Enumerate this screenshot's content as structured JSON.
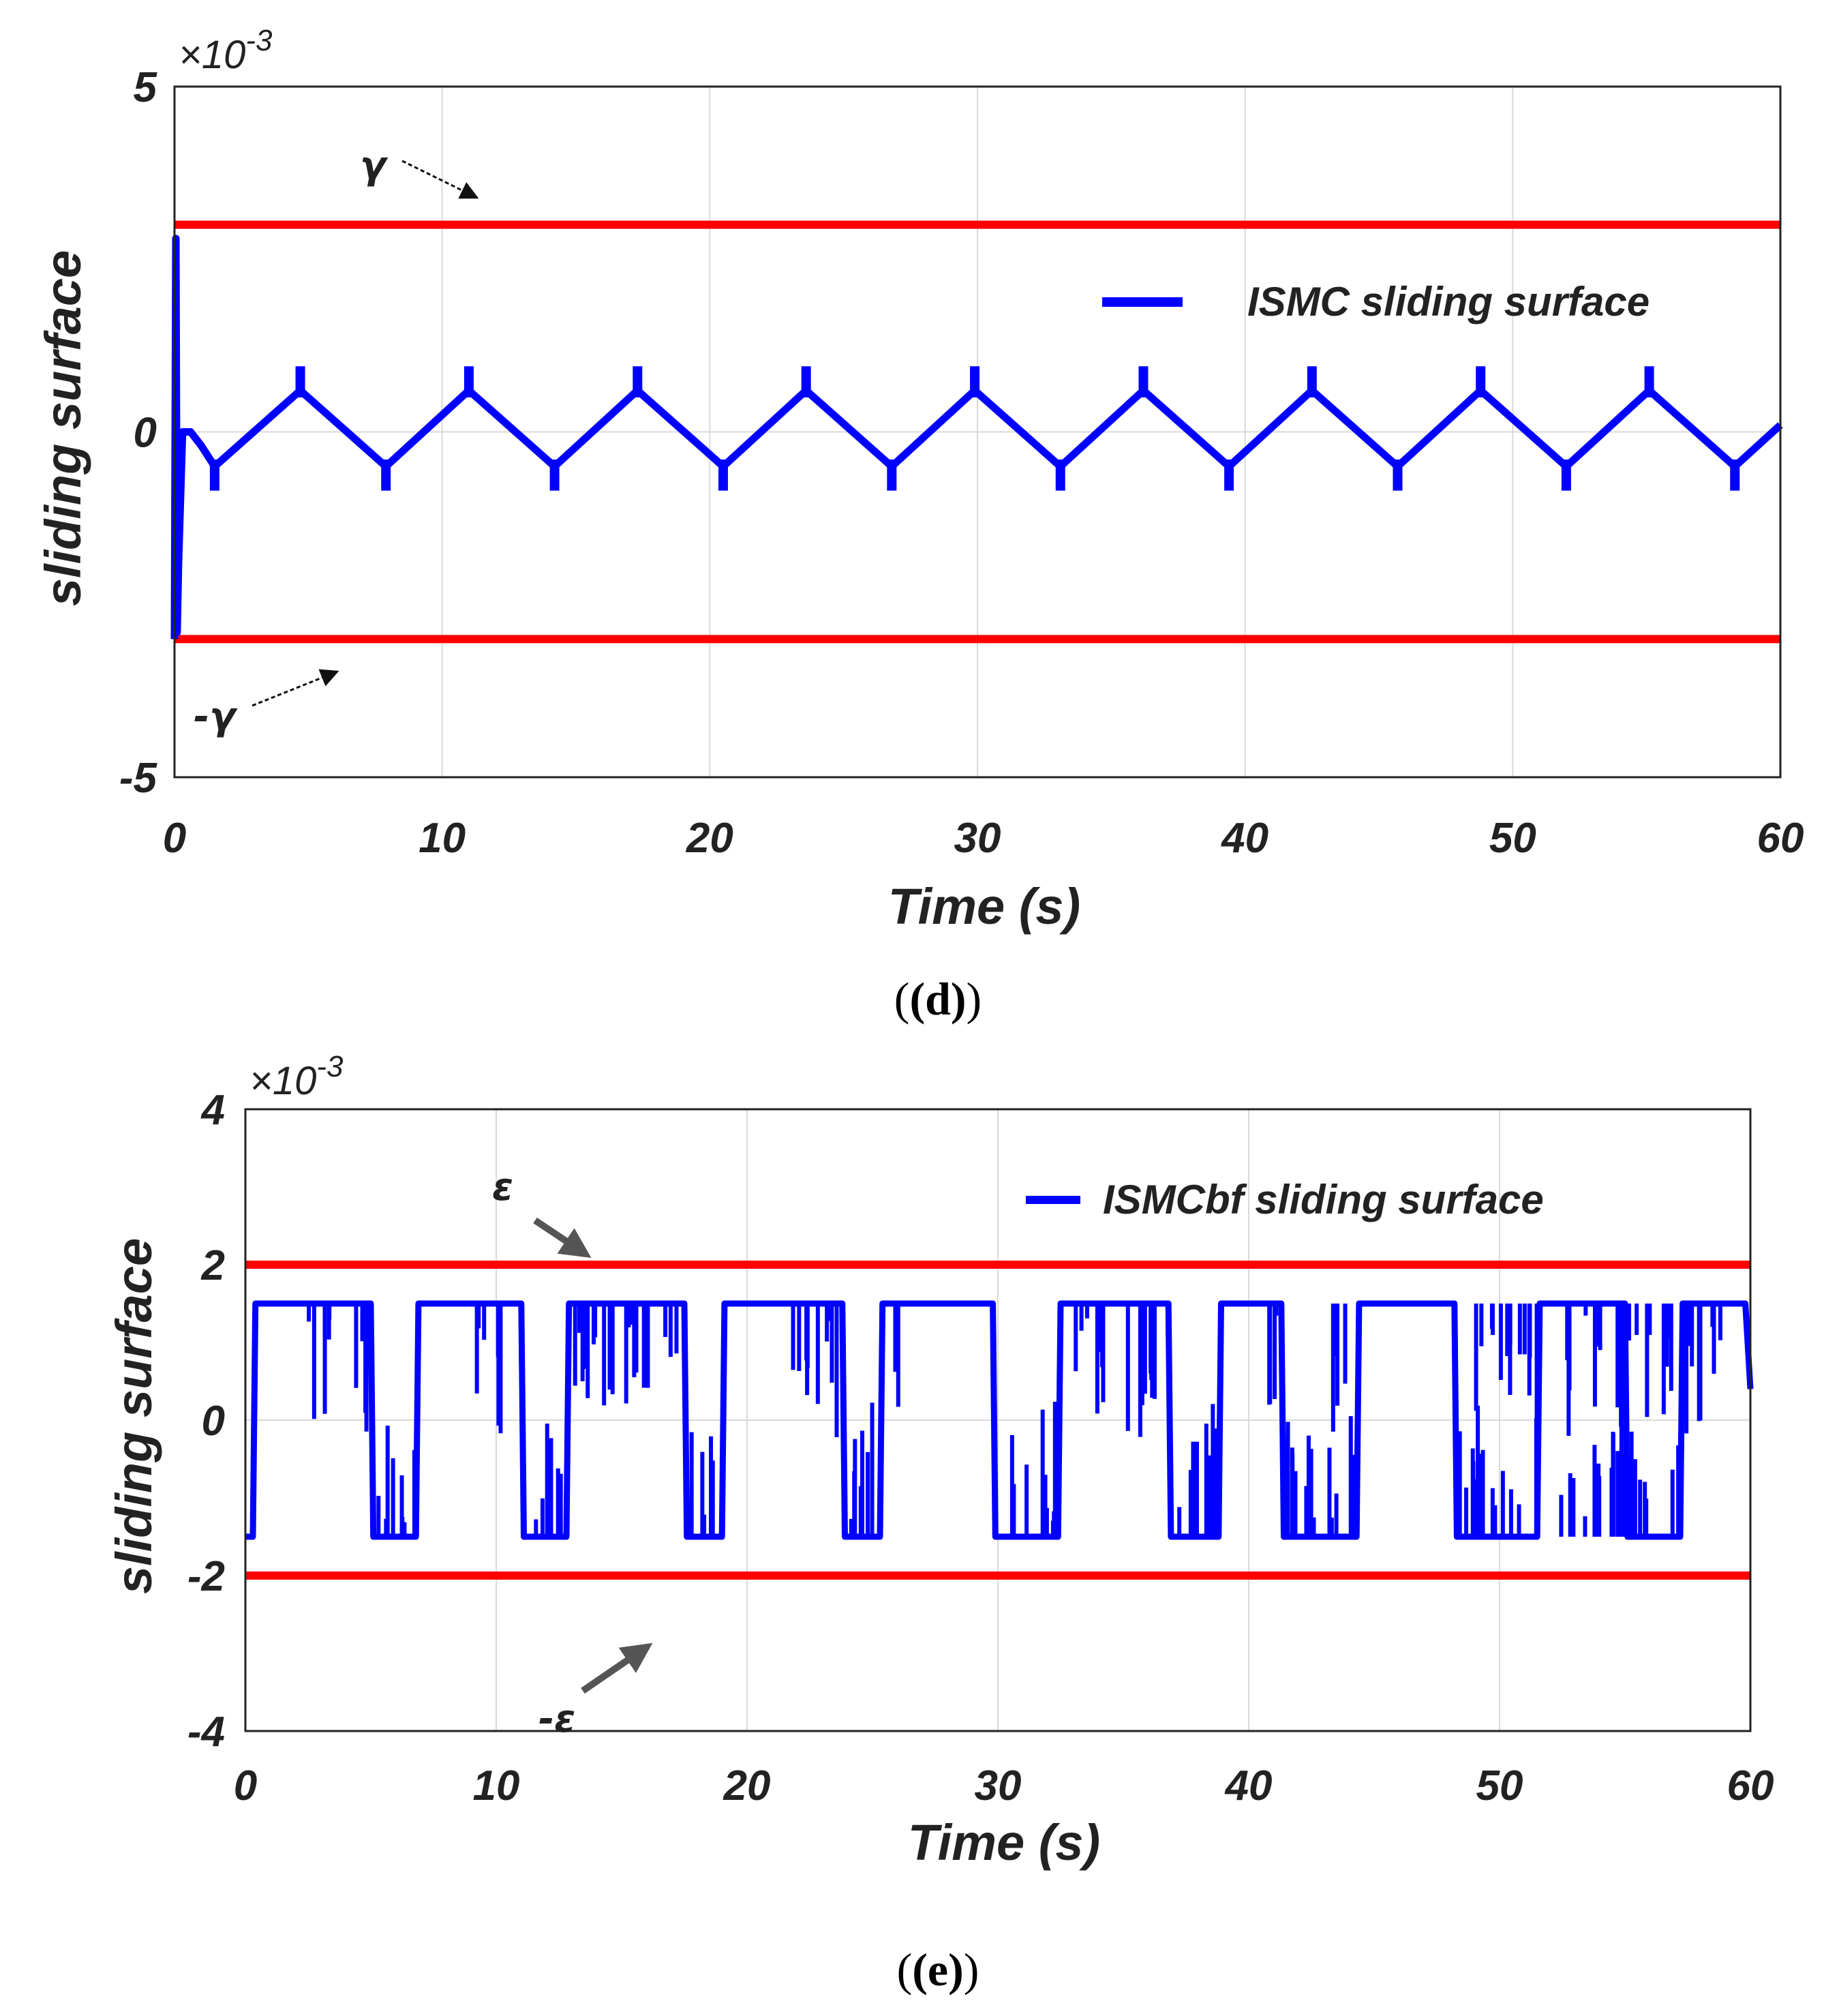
{
  "chart_data": [
    {
      "type": "line",
      "panel_label": "(d)",
      "xlabel": "Time (s)",
      "ylabel": "sliding surface",
      "y_multiplier": "×10",
      "y_multiplier_exp": "-3",
      "xlim": [
        0,
        60
      ],
      "ylim": [
        -5,
        5
      ],
      "xticks": [
        "0",
        "10",
        "20",
        "30",
        "40",
        "50",
        "60"
      ],
      "yticks": [
        "5",
        "0",
        "-5"
      ],
      "legend": "ISMC sliding surface",
      "grid": true,
      "bounds": [
        {
          "name": "γ",
          "label": "γ",
          "value": 3
        },
        {
          "name": "-γ",
          "label": "-γ",
          "value": -3
        }
      ],
      "series": [
        {
          "name": "ISMC sliding surface",
          "color": "#0000ff",
          "x": [
            0,
            0.05,
            0.1,
            0.15,
            0.3,
            0.6,
            1.0,
            1.5,
            4.7,
            7.9,
            11.0,
            14.2,
            17.3,
            20.5,
            23.6,
            26.8,
            29.9,
            33.1,
            36.2,
            39.4,
            42.5,
            45.7,
            48.8,
            52.0,
            55.1,
            58.3,
            60
          ],
          "y": [
            -3.0,
            2.8,
            -2.9,
            -1.9,
            0.0,
            0.0,
            -0.2,
            -0.5,
            0.6,
            -0.5,
            0.6,
            -0.5,
            0.6,
            -0.5,
            0.6,
            -0.5,
            0.6,
            -0.5,
            0.6,
            -0.5,
            0.6,
            -0.5,
            0.6,
            -0.5,
            0.6,
            -0.5,
            0.1
          ]
        }
      ],
      "spikes_x": [
        1.5,
        4.7,
        7.9,
        11.0,
        14.2,
        17.3,
        20.5,
        23.6,
        26.8,
        29.9,
        33.1,
        36.2,
        39.4,
        42.5,
        45.7,
        48.8,
        52.0,
        55.1,
        58.3
      ]
    },
    {
      "type": "line",
      "panel_label": "(e)",
      "xlabel": "Time (s)",
      "ylabel": "sliding surface",
      "y_multiplier": "×10",
      "y_multiplier_exp": "-3",
      "xlim": [
        0,
        60
      ],
      "ylim": [
        -4,
        4
      ],
      "xticks": [
        "0",
        "10",
        "20",
        "30",
        "40",
        "50",
        "60"
      ],
      "yticks": [
        "4",
        "2",
        "0",
        "-2",
        "-4"
      ],
      "legend": "ISMCbf sliding surface",
      "grid": true,
      "bounds": [
        {
          "name": "ε",
          "label": "ε",
          "value": 2
        },
        {
          "name": "-ε",
          "label": "-ε",
          "value": -2
        }
      ],
      "series": [
        {
          "name": "ISMCbf sliding surface",
          "color": "#0000ff",
          "x": [
            0,
            0.3,
            0.4,
            5.0,
            5.1,
            6.8,
            6.9,
            11.0,
            11.1,
            12.8,
            12.9,
            17.5,
            17.6,
            19.0,
            19.1,
            23.8,
            23.9,
            25.3,
            25.4,
            29.8,
            29.9,
            32.4,
            32.5,
            36.8,
            36.9,
            38.8,
            38.9,
            41.3,
            41.4,
            44.3,
            44.4,
            48.2,
            48.3,
            51.5,
            51.6,
            55.0,
            55.1,
            57.2,
            57.3,
            59.8,
            60
          ],
          "y": [
            -1.5,
            -1.5,
            1.5,
            1.5,
            -1.5,
            -1.5,
            1.5,
            1.5,
            -1.5,
            -1.5,
            1.5,
            1.5,
            -1.5,
            -1.5,
            1.5,
            1.5,
            -1.5,
            -1.5,
            1.5,
            1.5,
            -1.5,
            -1.5,
            1.5,
            1.5,
            -1.5,
            -1.5,
            1.5,
            1.5,
            -1.5,
            -1.5,
            1.5,
            1.5,
            -1.5,
            -1.5,
            1.5,
            1.5,
            -1.5,
            -1.5,
            1.5,
            1.5,
            0.4
          ]
        }
      ],
      "chatter_top": [
        [
          2.5,
          5.0
        ],
        [
          8.8,
          10.2
        ],
        [
          12.9,
          17.2
        ],
        [
          21.8,
          23.8
        ],
        [
          25.4,
          26.2
        ],
        [
          33.0,
          36.5
        ],
        [
          40.5,
          41.2
        ],
        [
          43.3,
          44.2
        ],
        [
          49.0,
          51.5
        ],
        [
          52.5,
          57.2
        ],
        [
          57.4,
          59.0
        ]
      ],
      "chatter_bottom": [
        [
          5.3,
          6.8
        ],
        [
          11.5,
          12.8
        ],
        [
          17.7,
          18.8
        ],
        [
          24.0,
          25.3
        ],
        [
          30.5,
          32.4
        ],
        [
          36.9,
          38.8
        ],
        [
          41.4,
          44.3
        ],
        [
          48.3,
          51.5
        ],
        [
          51.6,
          55.0
        ],
        [
          55.1,
          57.2
        ]
      ]
    }
  ]
}
